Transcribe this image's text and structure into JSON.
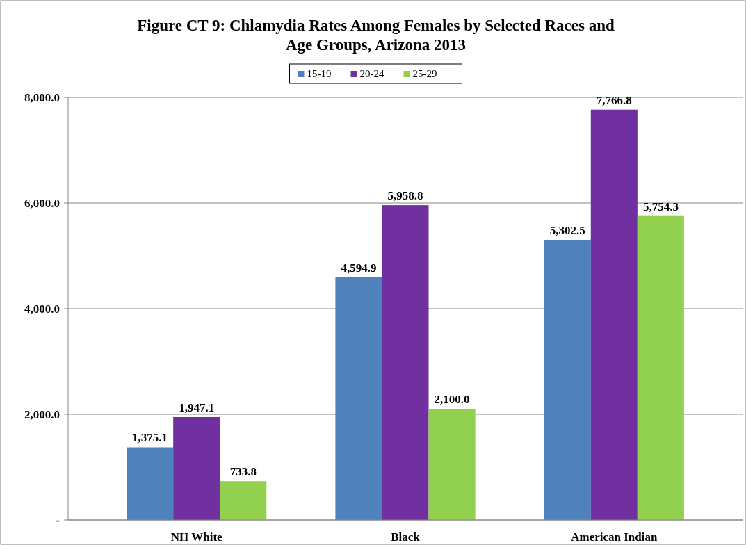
{
  "chart_data": {
    "type": "bar",
    "title": "Figure CT 9: Chlamydia Rates Among Females by Selected Races and Age Groups, Arizona 2013",
    "categories": [
      "NH White",
      "Black",
      "American Indian"
    ],
    "series": [
      {
        "name": "15-19",
        "color": "#4f81bd",
        "values": [
          1375.1,
          4594.9,
          5302.5
        ],
        "value_labels": [
          "1,375.1",
          "4,594.9",
          "5,302.5"
        ]
      },
      {
        "name": "20-24",
        "color": "#7030a0",
        "values": [
          1947.1,
          5958.8,
          7766.8
        ],
        "value_labels": [
          "1,947.1",
          "5,958.8",
          "7,766.8"
        ]
      },
      {
        "name": "25-29",
        "color": "#92d050",
        "values": [
          733.8,
          2100.0,
          5754.3
        ],
        "value_labels": [
          "733.8",
          "2,100.0",
          "5,754.3"
        ]
      }
    ],
    "ylim": [
      0,
      8000
    ],
    "yticks": [
      {
        "value": 0,
        "label": "-"
      },
      {
        "value": 2000,
        "label": "2,000.0"
      },
      {
        "value": 4000,
        "label": "4,000.0"
      },
      {
        "value": 6000,
        "label": "6,000.0"
      },
      {
        "value": 8000,
        "label": "8,000.0"
      }
    ],
    "grid": "y",
    "legend": "top"
  }
}
